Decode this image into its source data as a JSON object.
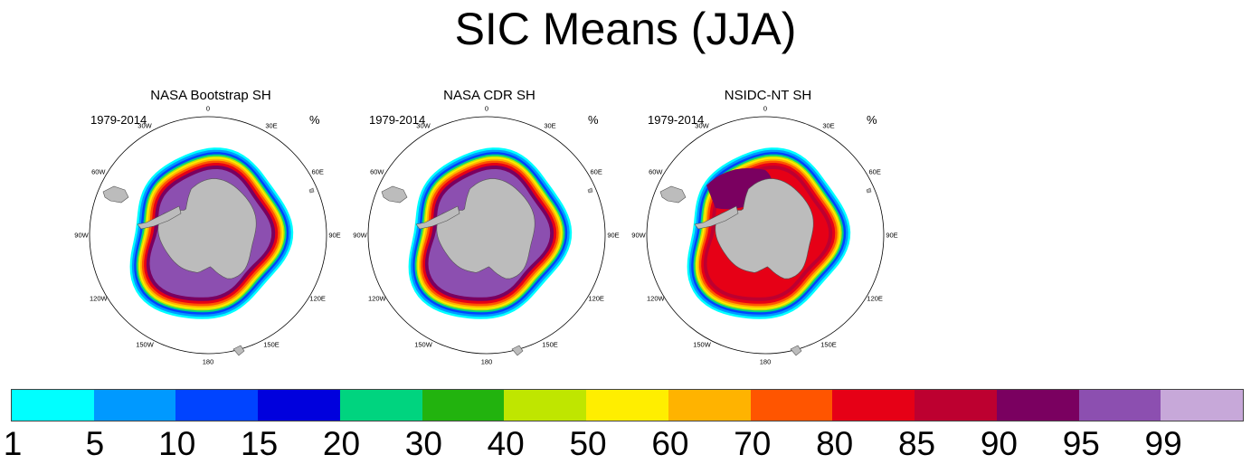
{
  "title": "SIC Means (JJA)",
  "panels": [
    {
      "title": "NASA Bootstrap SH",
      "period": "1979-2014",
      "units": "%"
    },
    {
      "title": "NASA CDR SH",
      "period": "1979-2014",
      "units": "%"
    },
    {
      "title": "NSIDC-NT SH",
      "period": "1979-2014",
      "units": "%"
    }
  ],
  "longitude_labels": [
    "0",
    "30E",
    "60E",
    "90E",
    "120E",
    "150E",
    "180",
    "150W",
    "120W",
    "90W",
    "60W",
    "30W"
  ],
  "colorbar": {
    "labels": [
      "1",
      "5",
      "10",
      "15",
      "20",
      "30",
      "40",
      "50",
      "60",
      "70",
      "80",
      "85",
      "90",
      "95",
      "99"
    ],
    "colors": [
      "#00ffff",
      "#0099ff",
      "#0044ff",
      "#0000dd",
      "#00d47f",
      "#22b30e",
      "#bfe600",
      "#ffee00",
      "#ffb300",
      "#ff5500",
      "#e60016",
      "#bd0030",
      "#7a0060",
      "#8c4fb0",
      "#c7a8d9"
    ]
  },
  "colors": {
    "land": "#bcbcbc",
    "ocean": "#ffffff"
  }
}
